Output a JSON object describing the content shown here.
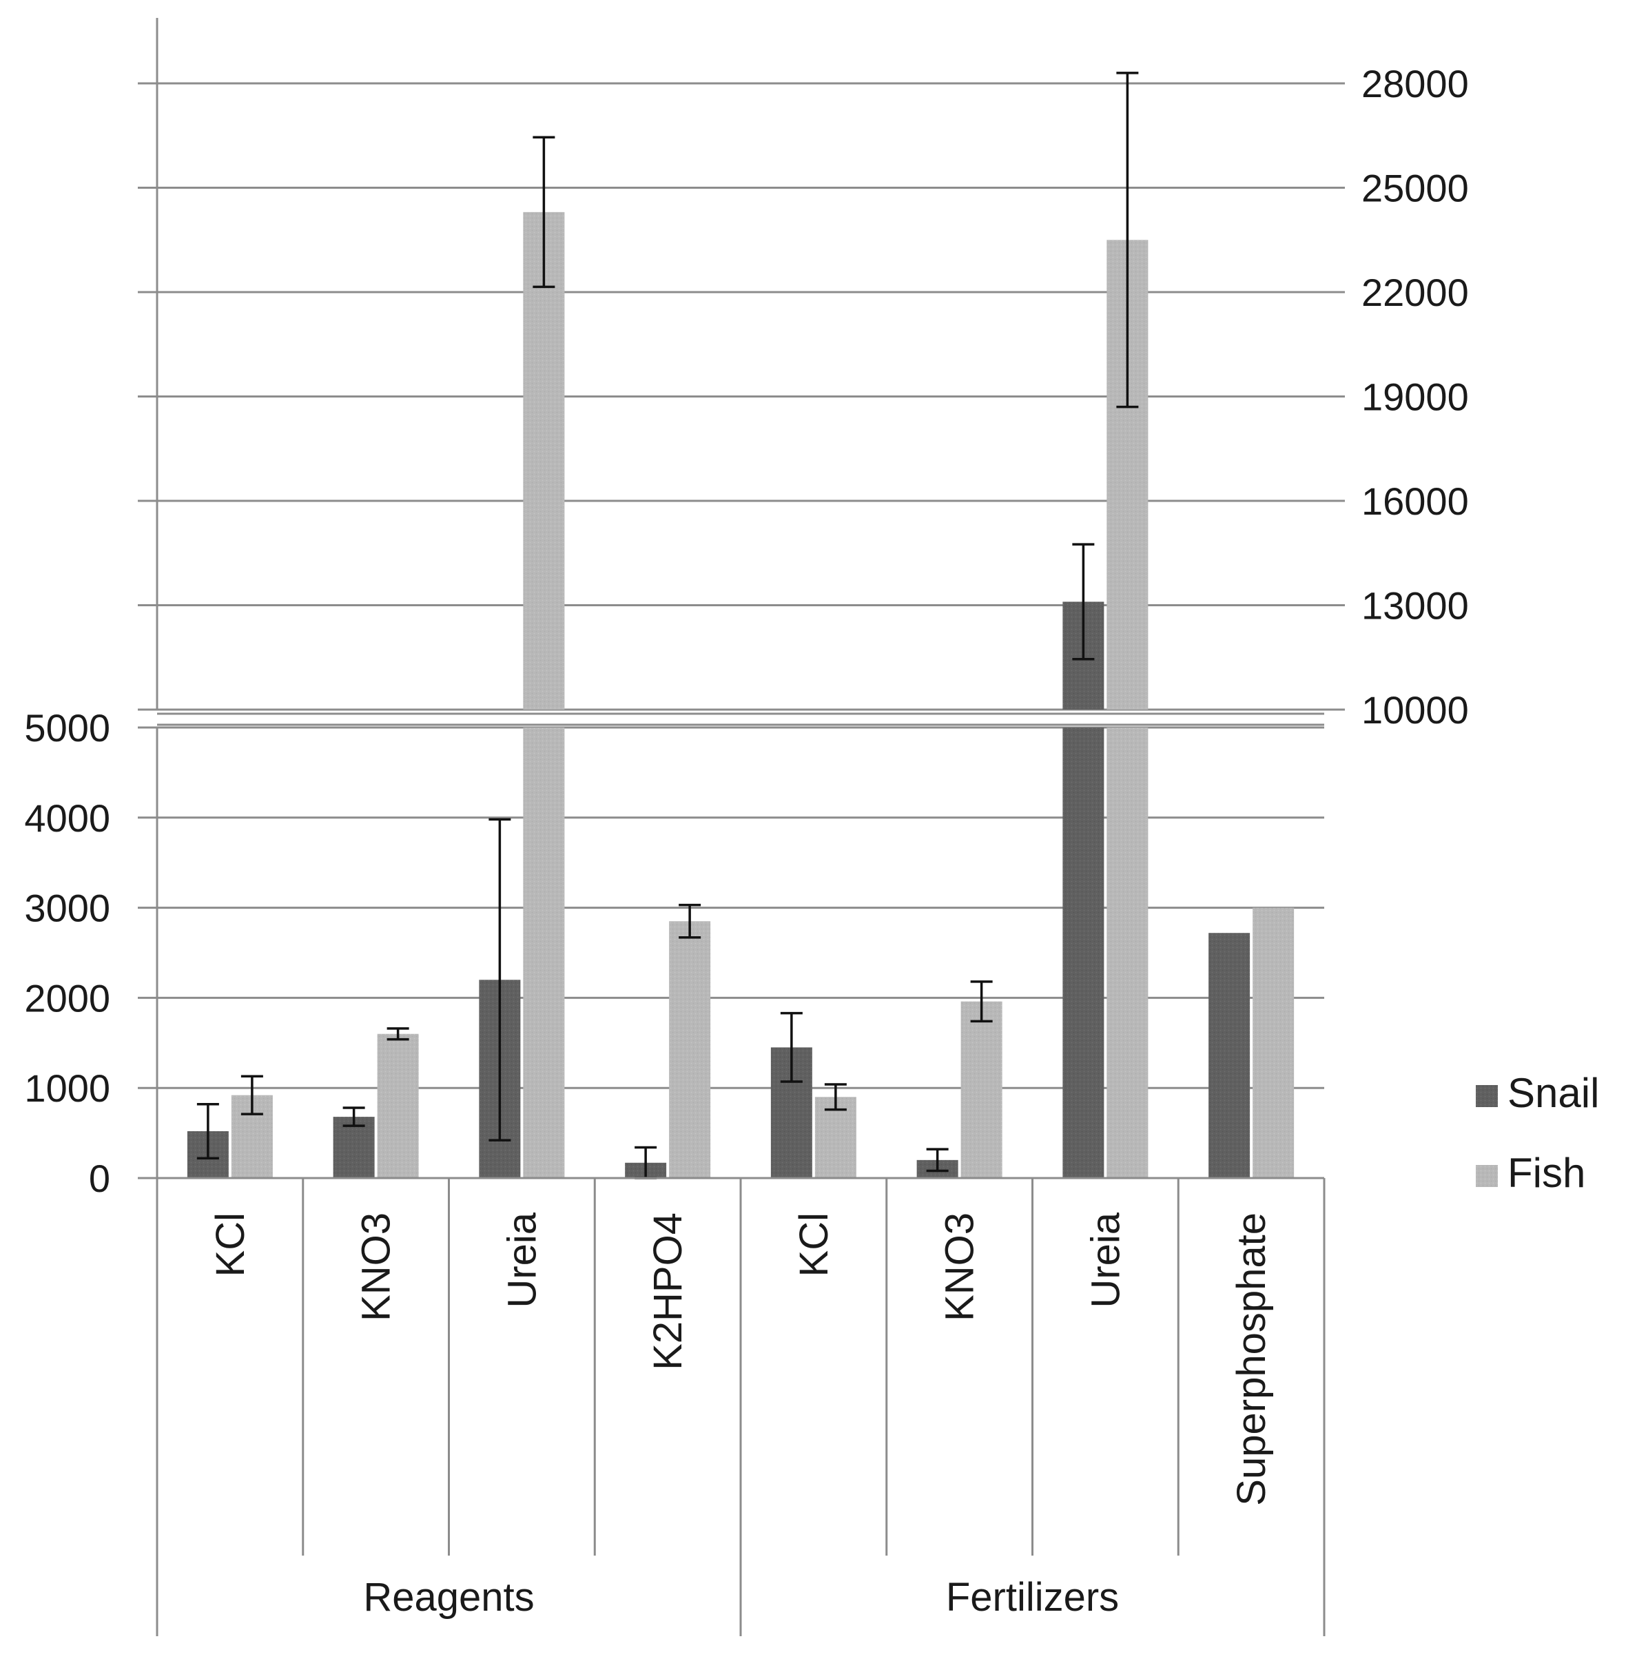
{
  "chart_data": {
    "type": "bar",
    "title": "",
    "xlabel": "",
    "ylabel": "",
    "broken_axis": true,
    "lower_axis": {
      "side": "left",
      "ylim": [
        0,
        5000
      ],
      "ticks": [
        0,
        1000,
        2000,
        3000,
        4000,
        5000
      ]
    },
    "upper_axis": {
      "side": "right",
      "ylim": [
        10000,
        30000
      ],
      "ticks": [
        10000,
        13000,
        16000,
        19000,
        22000,
        25000,
        28000
      ]
    },
    "grid": true,
    "legend": "right",
    "colors": {
      "Snail": "#606060",
      "Fish": "#b8b8b8"
    },
    "groups": [
      {
        "label": "Reagents",
        "categories": [
          "KCl",
          "KNO3",
          "Ureia",
          "K2HPO4"
        ]
      },
      {
        "label": "Fertilizers",
        "categories": [
          "KCl",
          "KNO3",
          "Ureia",
          "Superphosphate"
        ]
      }
    ],
    "categories": [
      "KCl",
      "KNO3",
      "Ureia",
      "K2HPO4",
      "KCl",
      "KNO3",
      "Ureia",
      "Superphosphate"
    ],
    "series": [
      {
        "name": "Snail",
        "values": [
          520,
          680,
          2200,
          170,
          1450,
          200,
          13100,
          2720
        ],
        "errors": [
          300,
          100,
          1780,
          170,
          380,
          120,
          1650,
          null
        ]
      },
      {
        "name": "Fish",
        "values": [
          920,
          1600,
          24300,
          2850,
          900,
          1960,
          23500,
          3000
        ],
        "errors": [
          210,
          60,
          2150,
          180,
          140,
          220,
          4800,
          null
        ]
      }
    ]
  }
}
